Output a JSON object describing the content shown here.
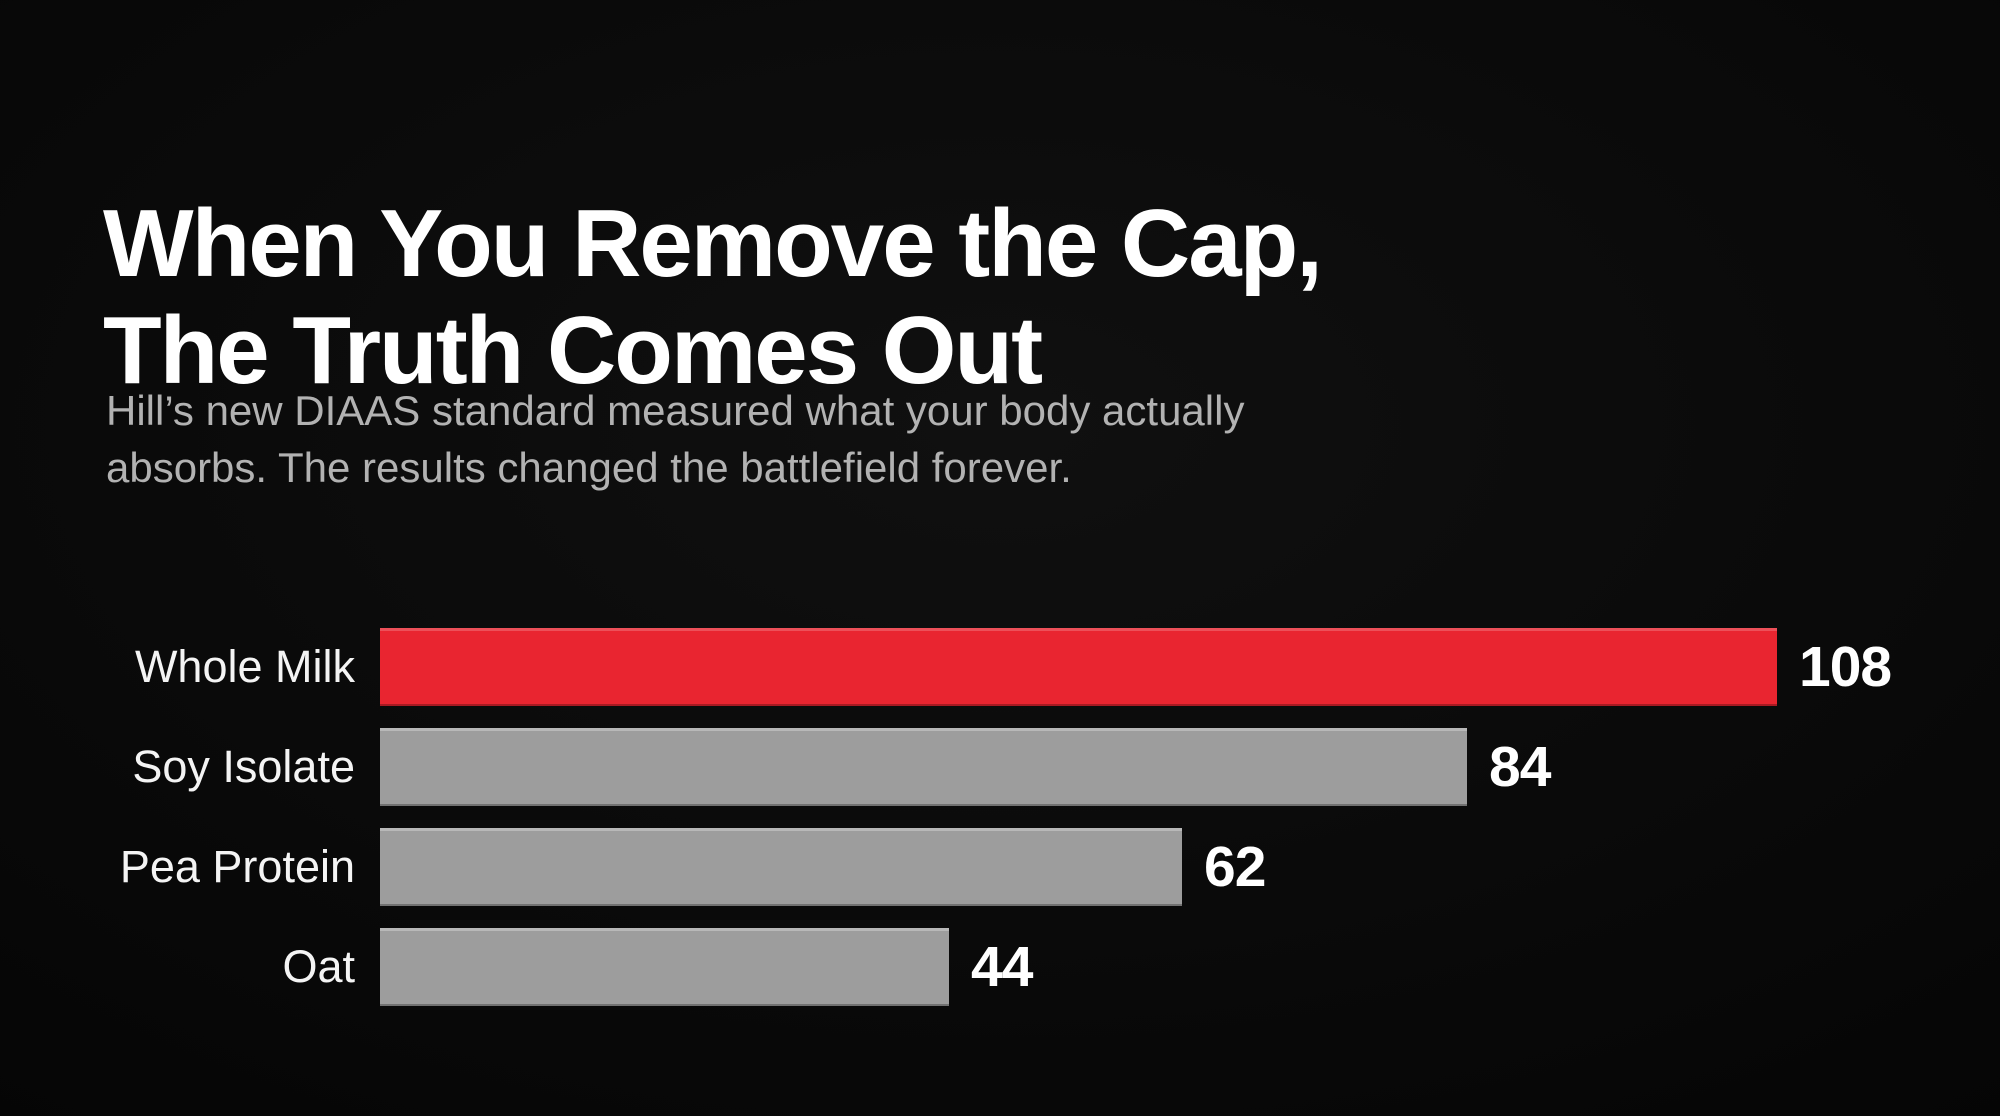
{
  "background_color": "#0a0a0a",
  "text_colors": {
    "title": "#ffffff",
    "subtitle": "#b2b2b2",
    "bar_label": "#f4f4f4",
    "value_label": "#ffffff"
  },
  "header": {
    "title_line1": "When You Remove the Cap,",
    "title_line2": "The Truth Comes Out",
    "subtitle_line1": "Hill’s new DIAAS standard measured what your body actually",
    "subtitle_line2": "absorbs. The results changed the battlefield forever."
  },
  "chart_data": {
    "type": "bar",
    "orientation": "horizontal",
    "title": "When You Remove the Cap, The Truth Comes Out",
    "subtitle": "Hill’s new DIAAS standard measured what your body actually absorbs. The results changed the battlefield forever.",
    "categories": [
      "Whole Milk",
      "Soy Isolate",
      "Pea Protein",
      "Oat"
    ],
    "values": [
      108,
      84,
      62,
      44
    ],
    "value_labels": [
      "108",
      "84",
      "62",
      "44"
    ],
    "bar_colors": [
      "#e92530",
      "#9d9d9d",
      "#9d9d9d",
      "#9d9d9d"
    ],
    "highlight_category": "Whole Milk",
    "highlight_color": "#e92530",
    "default_bar_color": "#9d9d9d",
    "xlim": [
      0,
      108
    ],
    "grid": false,
    "legend": false,
    "axis_shown": false,
    "value_labels_shown": true
  }
}
